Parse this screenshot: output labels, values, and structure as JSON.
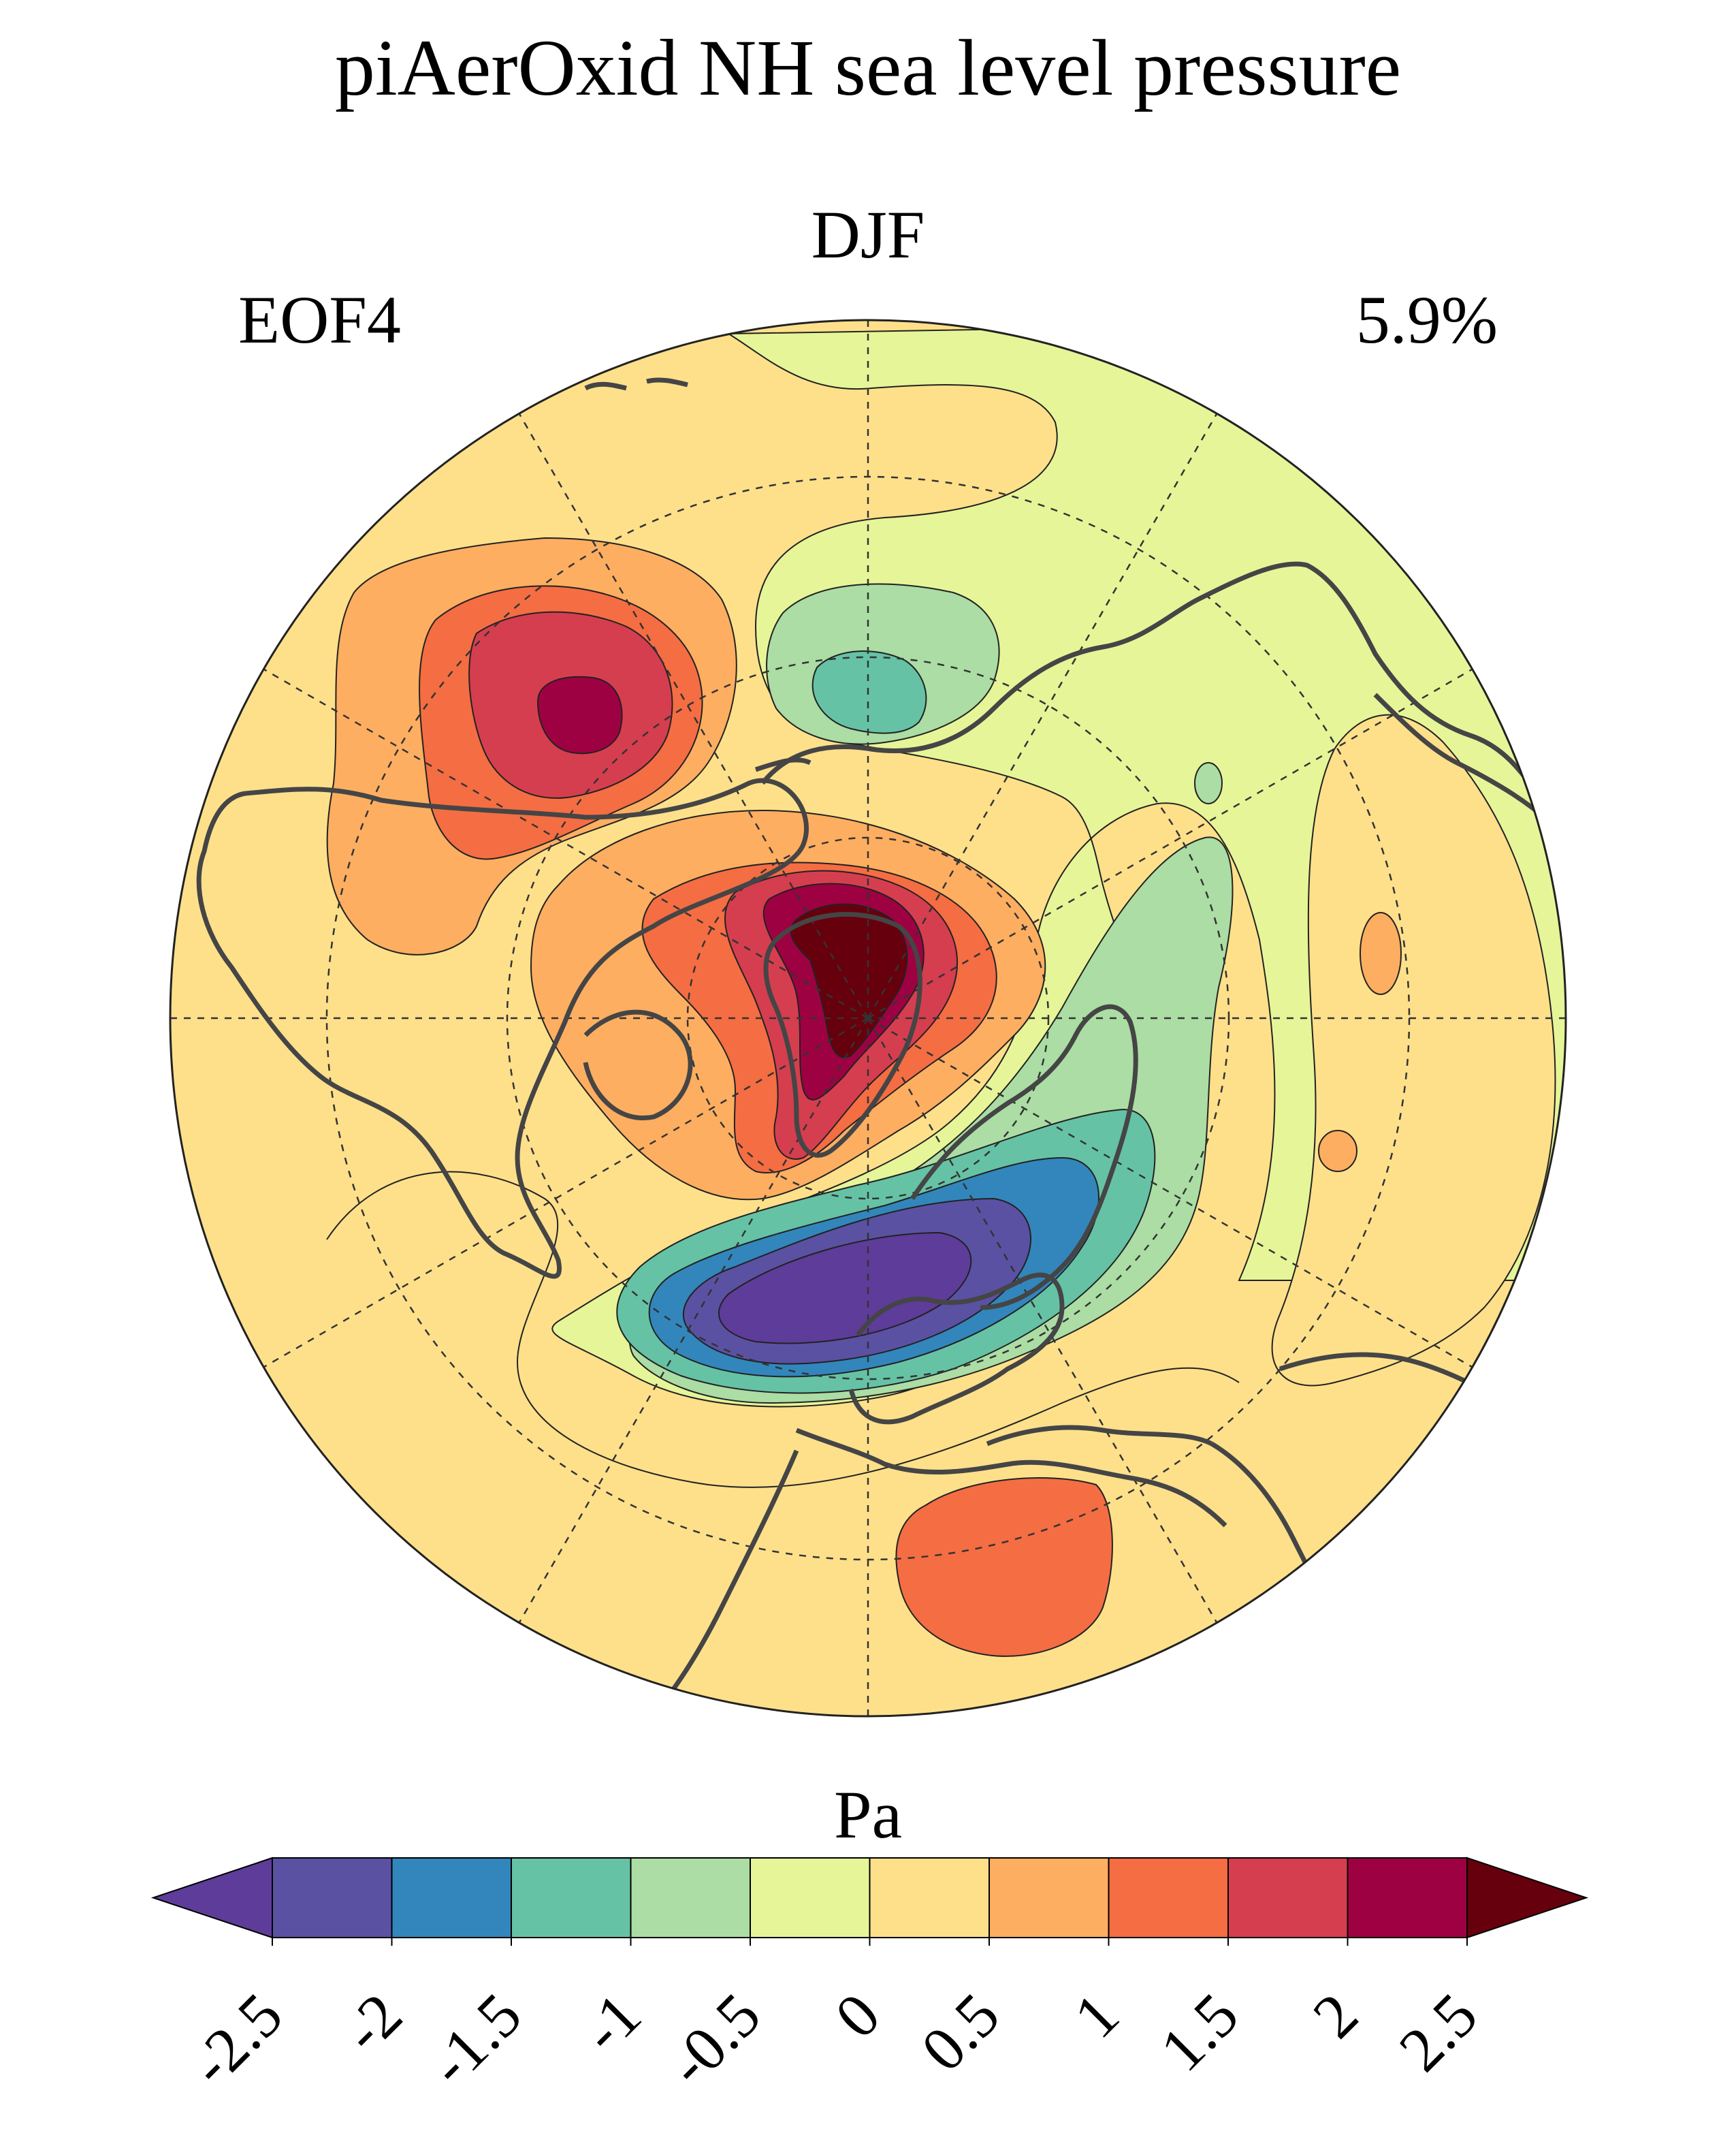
{
  "title": "piAerOxid NH sea level pressure",
  "season": "DJF",
  "mode_label": "EOF4",
  "variance_explained": "5.9%",
  "colorbar": {
    "units": "Pa",
    "ticks": [
      "-2.5",
      "-2",
      "-1.5",
      "-1",
      "-0.5",
      "0",
      "0.5",
      "1",
      "1.5",
      "2",
      "2.5"
    ],
    "levels": [
      -2.5,
      -2,
      -1.5,
      -1,
      -0.5,
      0,
      0.5,
      1,
      1.5,
      2,
      2.5
    ],
    "colors": [
      "#5e3c99",
      "#5b51a3",
      "#3286bc",
      "#66c2a5",
      "#abdda4",
      "#e6f598",
      "#fee08b",
      "#fdae61",
      "#f46d43",
      "#d53e4f",
      "#9e0142",
      "#67000d"
    ],
    "extend": "both"
  },
  "map": {
    "projection": "north-polar-stereographic",
    "background_color": "#fee08b",
    "coastline_color": "#454545",
    "grid_style": "dashed"
  }
}
